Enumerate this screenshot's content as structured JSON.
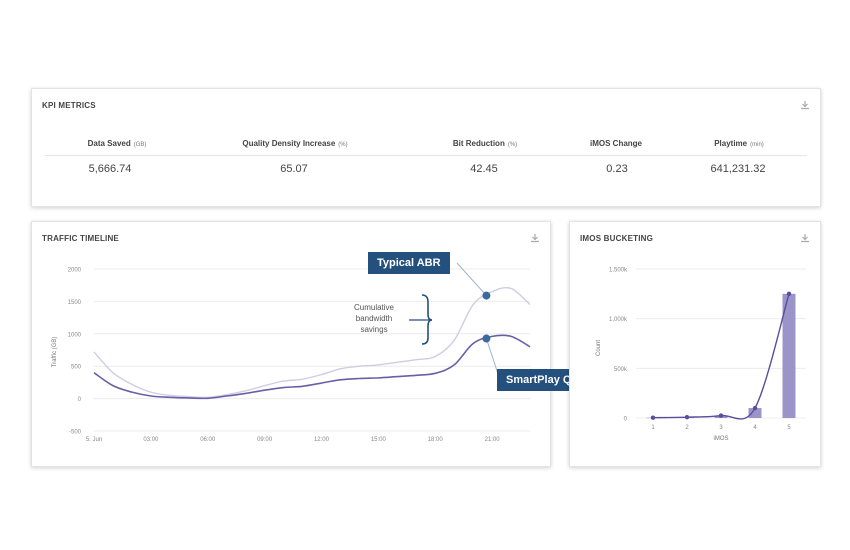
{
  "kpi": {
    "title": "KPI METRICS",
    "download_icon": "download-icon",
    "metrics": [
      {
        "label": "Data Saved",
        "unit": "(GB)",
        "value": "5,666.74"
      },
      {
        "label": "Quality Density Increase",
        "unit": "(%)",
        "value": "65.07"
      },
      {
        "label": "Bit Reduction",
        "unit": "(%)",
        "value": "42.45"
      },
      {
        "label": "iMOS Change",
        "unit": "",
        "value": "0.23"
      },
      {
        "label": "Playtime",
        "unit": "(min)",
        "value": "641,231.32"
      }
    ]
  },
  "traffic": {
    "title": "TRAFFIC TIMELINE",
    "download_icon": "download-icon",
    "callout_typical": "Typical ABR",
    "callout_smartplay": "SmartPlay QBR",
    "annotation": [
      "Cumulative",
      "bandwidth",
      "savings"
    ],
    "colors": {
      "typical": "#cfcde3",
      "smartplay": "#6b5ea8",
      "callout_bg": "#24507e",
      "marker": "#3d6a9e"
    },
    "chart_data": {
      "type": "line",
      "xlabel": "",
      "ylabel": "Traffic (GB)",
      "ylim": [
        -500,
        2000
      ],
      "yticks": [
        "2000",
        "1500",
        "1000",
        "500",
        "0",
        "-500"
      ],
      "xticks": [
        "5. Jun",
        "03:00",
        "06:00",
        "09:00",
        "12:00",
        "15:00",
        "18:00",
        "21:00"
      ],
      "x": [
        "00:00",
        "01:00",
        "02:00",
        "03:00",
        "04:00",
        "05:00",
        "06:00",
        "07:00",
        "08:00",
        "09:00",
        "10:00",
        "11:00",
        "12:00",
        "13:00",
        "14:00",
        "15:00",
        "16:00",
        "17:00",
        "18:00",
        "19:00",
        "20:00",
        "21:00",
        "22:00",
        "23:00"
      ],
      "series": [
        {
          "name": "Typical ABR",
          "values": [
            720,
            400,
            220,
            100,
            50,
            30,
            20,
            60,
            120,
            200,
            270,
            300,
            370,
            460,
            500,
            520,
            560,
            600,
            650,
            900,
            1450,
            1650,
            1700,
            1450
          ]
        },
        {
          "name": "SmartPlay QBR",
          "values": [
            400,
            200,
            100,
            40,
            20,
            10,
            5,
            40,
            80,
            130,
            170,
            190,
            240,
            290,
            310,
            320,
            340,
            360,
            390,
            520,
            850,
            960,
            960,
            800
          ]
        }
      ],
      "grid": true
    }
  },
  "imos": {
    "title": "IMOS BUCKETING",
    "download_icon": "download-icon",
    "colors": {
      "bar": "#9a94c8",
      "line": "#5a4e9c"
    },
    "chart_data": {
      "type": "bar",
      "xlabel": "iMOS",
      "ylabel": "Count",
      "ylim": [
        0,
        1500000
      ],
      "yticks": [
        "1,500k",
        "1,000k",
        "500k",
        "0"
      ],
      "categories": [
        "1",
        "2",
        "3",
        "4",
        "5"
      ],
      "values": [
        3000,
        8000,
        25000,
        100000,
        1250000
      ]
    }
  }
}
